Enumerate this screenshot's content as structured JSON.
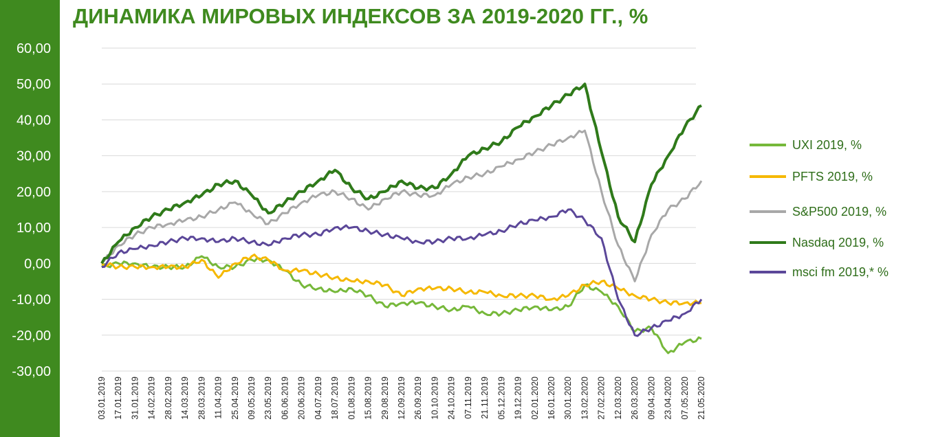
{
  "title": "ДИНАМИКА МИРОВЫХ ИНДЕКСОВ ЗА 2019-2020 ГГ., %",
  "chart_data": {
    "type": "line",
    "ylim": [
      -30,
      60
    ],
    "yticks": [
      "60,00",
      "50,00",
      "40,00",
      "30,00",
      "20,00",
      "10,00",
      "0,00",
      "-10,00",
      "-20,00",
      "-30,00"
    ],
    "ytick_values": [
      60,
      50,
      40,
      30,
      20,
      10,
      0,
      -10,
      -20,
      -30
    ],
    "grid": true,
    "legend_position": "right",
    "x": [
      "03.01.2019",
      "17.01.2019",
      "31.01.2019",
      "14.02.2019",
      "28.02.2019",
      "14.03.2019",
      "28.03.2019",
      "11.04.2019",
      "25.04.2019",
      "09.05.2019",
      "23.05.2019",
      "06.06.2019",
      "20.06.2019",
      "04.07.2019",
      "18.07.2019",
      "01.08.2019",
      "15.08.2019",
      "29.08.2019",
      "12.09.2019",
      "26.09.2019",
      "10.10.2019",
      "24.10.2019",
      "07.11.2019",
      "21.11.2019",
      "05.12.2019",
      "19.12.2019",
      "02.01.2020",
      "16.01.2020",
      "30.01.2020",
      "13.02.2020",
      "27.02.2020",
      "12.03.2020",
      "26.03.2020",
      "09.04.2020",
      "23.04.2020",
      "07.05.2020",
      "21.05.2020"
    ],
    "series": [
      {
        "name": "UXI 2019, %",
        "color": "#76b83a",
        "width": 3,
        "values": [
          -1,
          0,
          0,
          -1,
          -1,
          -1,
          2,
          -1,
          -1,
          1,
          1,
          -2,
          -6,
          -7,
          -8,
          -7,
          -9,
          -12,
          -11,
          -11,
          -12,
          -13,
          -12,
          -14,
          -14,
          -13,
          -12,
          -13,
          -12,
          -6,
          -8,
          -12,
          -19,
          -18,
          -25,
          -22,
          -21
        ]
      },
      {
        "name": "PFTS 2019, %",
        "color": "#f5b800",
        "width": 3,
        "values": [
          0,
          -1,
          -1,
          -1,
          -1,
          -1,
          1,
          -4,
          0,
          2,
          1,
          -2,
          -2,
          -3,
          -4,
          -5,
          -5,
          -6,
          -9,
          -7,
          -7,
          -7,
          -8,
          -8,
          -9,
          -9,
          -9,
          -10,
          -9,
          -6,
          -5,
          -7,
          -9,
          -10,
          -11,
          -11,
          -11
        ]
      },
      {
        "name": "S&P500 2019, %",
        "color": "#a8a8a8",
        "width": 3,
        "values": [
          0,
          5,
          8,
          10,
          11,
          12,
          13,
          15,
          17,
          14,
          11,
          14,
          17,
          19,
          20,
          18,
          15,
          18,
          20,
          19,
          19,
          22,
          24,
          25,
          27,
          29,
          31,
          33,
          35,
          37,
          20,
          5,
          -5,
          8,
          15,
          18,
          23
        ]
      },
      {
        "name": "Nasdaq 2019, %",
        "color": "#2f7a1a",
        "width": 4,
        "values": [
          0,
          6,
          10,
          13,
          15,
          17,
          19,
          22,
          23,
          19,
          14,
          17,
          20,
          23,
          26,
          21,
          18,
          20,
          23,
          21,
          21,
          25,
          30,
          32,
          34,
          38,
          41,
          44,
          47,
          50,
          31,
          13,
          6,
          22,
          30,
          38,
          44
        ]
      },
      {
        "name": "msci fm 2019,* %",
        "color": "#5b4799",
        "width": 3,
        "values": [
          -1,
          3,
          4,
          5,
          6,
          7,
          7,
          6,
          7,
          6,
          5,
          7,
          8,
          8,
          10,
          10,
          9,
          8,
          7,
          6,
          6,
          7,
          7,
          8,
          9,
          11,
          12,
          13,
          15,
          12,
          7,
          -10,
          -20,
          -18,
          -16,
          -14,
          -10
        ]
      }
    ]
  }
}
